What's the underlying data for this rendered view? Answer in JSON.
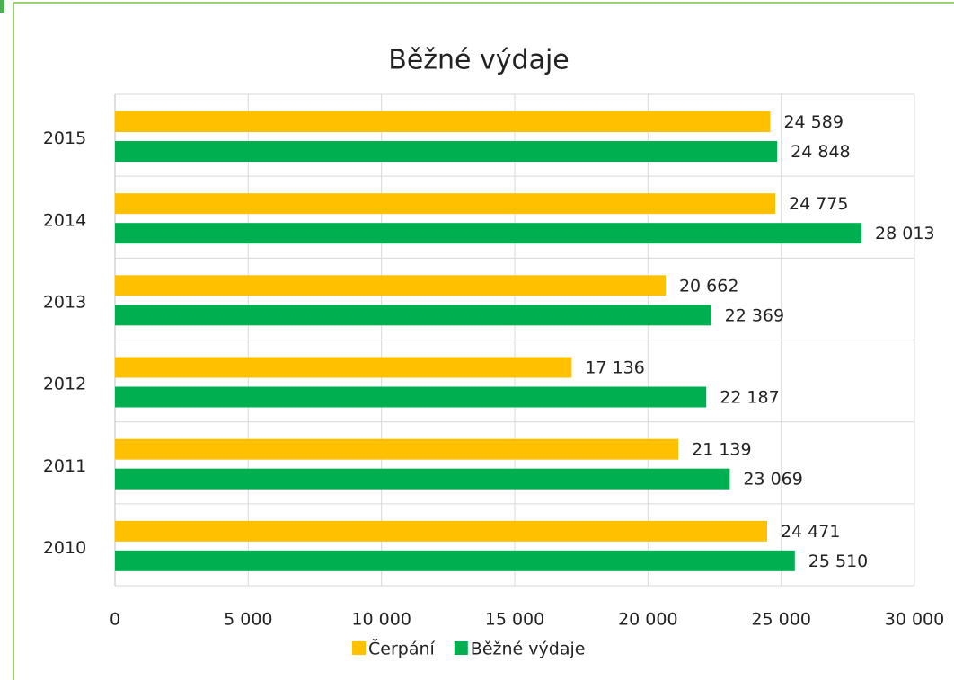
{
  "chart_data": {
    "type": "bar",
    "orientation": "horizontal",
    "title": "Běžné výdaje",
    "categories": [
      "2010",
      "2011",
      "2012",
      "2013",
      "2014",
      "2015"
    ],
    "series": [
      {
        "name": "Čerpání",
        "color": "#ffc000",
        "values": [
          24471,
          21139,
          17136,
          20662,
          24775,
          24589
        ],
        "value_labels": [
          "24 471",
          "21 139",
          "17 136",
          "20 662",
          "24 775",
          "24 589"
        ]
      },
      {
        "name": "Běžné výdaje",
        "color": "#00b050",
        "values": [
          25510,
          23069,
          22187,
          22369,
          28013,
          24848
        ],
        "value_labels": [
          "25 510",
          "23 069",
          "22 187",
          "22 369",
          "28 013",
          "24 848"
        ]
      }
    ],
    "xlim": [
      0,
      30000
    ],
    "xticks": [
      0,
      {
        "value": 5000,
        "label": "5 000"
      },
      {
        "value": 10000,
        "label": "10 000"
      },
      {
        "value": 15000,
        "label": "15 000"
      },
      {
        "value": 20000,
        "label": "20 000"
      },
      {
        "value": 25000,
        "label": "25 000"
      },
      {
        "value": 30000,
        "label": "30 000"
      }
    ],
    "grid": true,
    "legend": "bottom"
  }
}
